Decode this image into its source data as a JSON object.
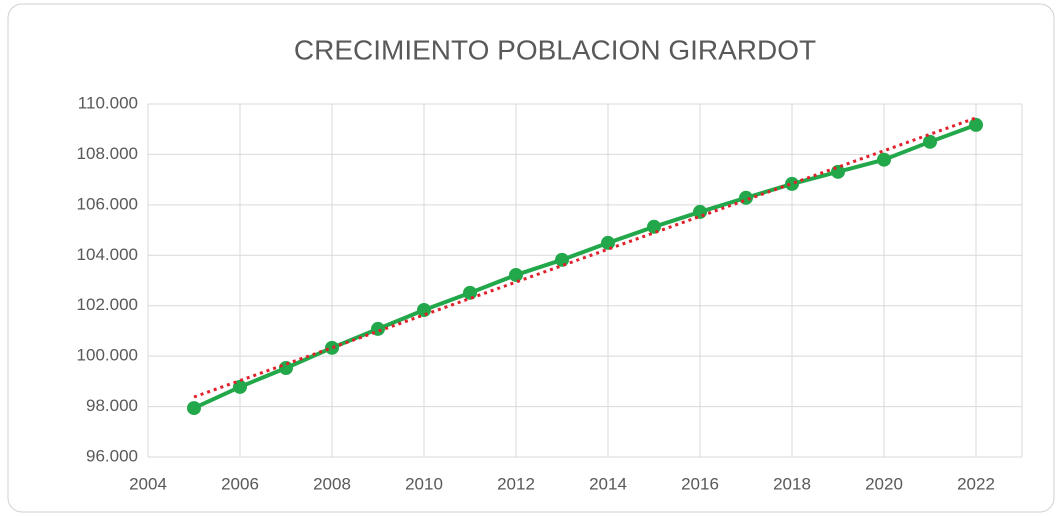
{
  "chart_data": {
    "type": "line",
    "title": "CRECIMIENTO POBLACION GIRARDOT",
    "x": [
      2005,
      2006,
      2007,
      2008,
      2009,
      2010,
      2011,
      2012,
      2013,
      2014,
      2015,
      2016,
      2017,
      2018,
      2019,
      2020,
      2021,
      2022
    ],
    "series": [
      {
        "color": "#22a84a",
        "values": [
          97940,
          98780,
          99530,
          100330,
          101080,
          101830,
          102510,
          103220,
          103820,
          104490,
          105130,
          105720,
          106280,
          106830,
          107310,
          107790,
          108500,
          109170
        ]
      }
    ],
    "trendline": {
      "color": "#e0202a",
      "x": [
        2005,
        2022
      ],
      "values": [
        98380,
        109450
      ]
    },
    "xlim": [
      2004,
      2023
    ],
    "xticks": [
      2004,
      2006,
      2008,
      2010,
      2012,
      2014,
      2016,
      2018,
      2020,
      2022
    ],
    "ylim": [
      96000,
      110000
    ],
    "yticks": [
      {
        "value": 96000,
        "label": "96.000"
      },
      {
        "value": 98000,
        "label": "98.000"
      },
      {
        "value": 100000,
        "label": "100.000"
      },
      {
        "value": 102000,
        "label": "102.000"
      },
      {
        "value": 104000,
        "label": "104.000"
      },
      {
        "value": 106000,
        "label": "106.000"
      },
      {
        "value": 108000,
        "label": "108.000"
      },
      {
        "value": 110000,
        "label": "110.000"
      }
    ],
    "grid": true
  }
}
